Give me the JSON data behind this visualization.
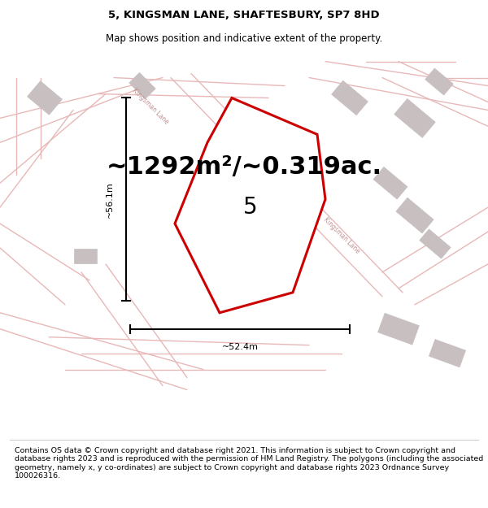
{
  "title_line1": "5, KINGSMAN LANE, SHAFTESBURY, SP7 8HD",
  "title_line2": "Map shows position and indicative extent of the property.",
  "area_text": "~1292m²/~0.319ac.",
  "number_label": "5",
  "dim_height": "~56.1m",
  "dim_width": "~52.4m",
  "footer_text": "Contains OS data © Crown copyright and database right 2021. This information is subject to Crown copyright and database rights 2023 and is reproduced with the permission of HM Land Registry. The polygons (including the associated geometry, namely x, y co-ordinates) are subject to Crown copyright and database rights 2023 Ordnance Survey 100026316.",
  "bg_color": "#ffffff",
  "map_bg": "#f5eeee",
  "plot_color": "#cc0000",
  "road_color": "#e8b8b8",
  "building_color": "#c8c0c0",
  "dim_line_color": "#000000",
  "road_label_color": "#c09090",
  "footer_divider_color": "#cccccc",
  "title_fontsize": 9.5,
  "subtitle_fontsize": 8.5,
  "area_fontsize": 22,
  "number_fontsize": 20,
  "dim_fontsize": 8,
  "footer_fontsize": 6.8
}
